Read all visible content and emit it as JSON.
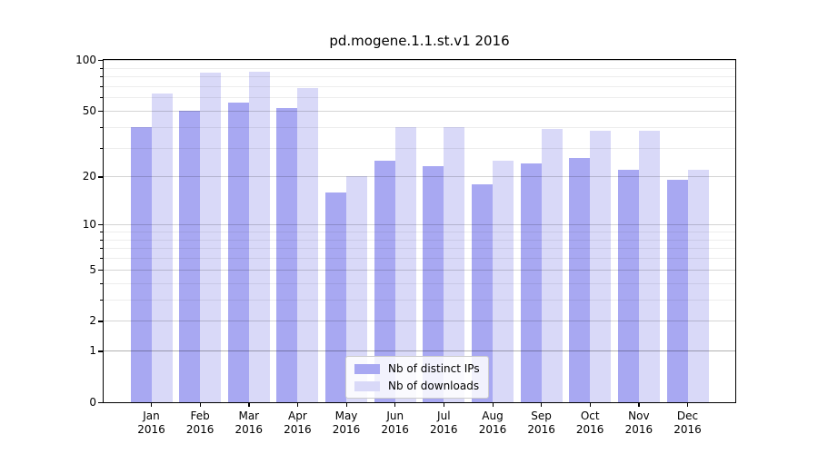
{
  "chart_data": {
    "type": "bar",
    "title": "pd.mogene.1.1.st.v1 2016",
    "year": "2016",
    "categories": [
      "Jan",
      "Feb",
      "Mar",
      "Apr",
      "May",
      "Jun",
      "Jul",
      "Aug",
      "Sep",
      "Oct",
      "Nov",
      "Dec"
    ],
    "series": [
      {
        "key": "distinct-ips",
        "name": "Nb of distinct IPs",
        "color": "#a8a8f2",
        "values": [
          40,
          50,
          56,
          52,
          16,
          25,
          23,
          18,
          24,
          26,
          22,
          19
        ]
      },
      {
        "key": "downloads",
        "name": "Nb of downloads",
        "color": "#d9d9f8",
        "values": [
          63,
          84,
          85,
          68,
          20,
          40,
          40,
          25,
          39,
          38,
          38,
          22
        ]
      }
    ],
    "y_scale": "log1p",
    "ylim": [
      0,
      100
    ],
    "y_major_ticks": [
      0,
      1,
      2,
      5,
      10,
      20,
      50,
      100
    ],
    "y_minor_ticks": [
      3,
      4,
      6,
      7,
      8,
      9,
      30,
      40,
      60,
      70,
      80,
      90
    ],
    "grid": true,
    "legend_position": "lower-center"
  }
}
